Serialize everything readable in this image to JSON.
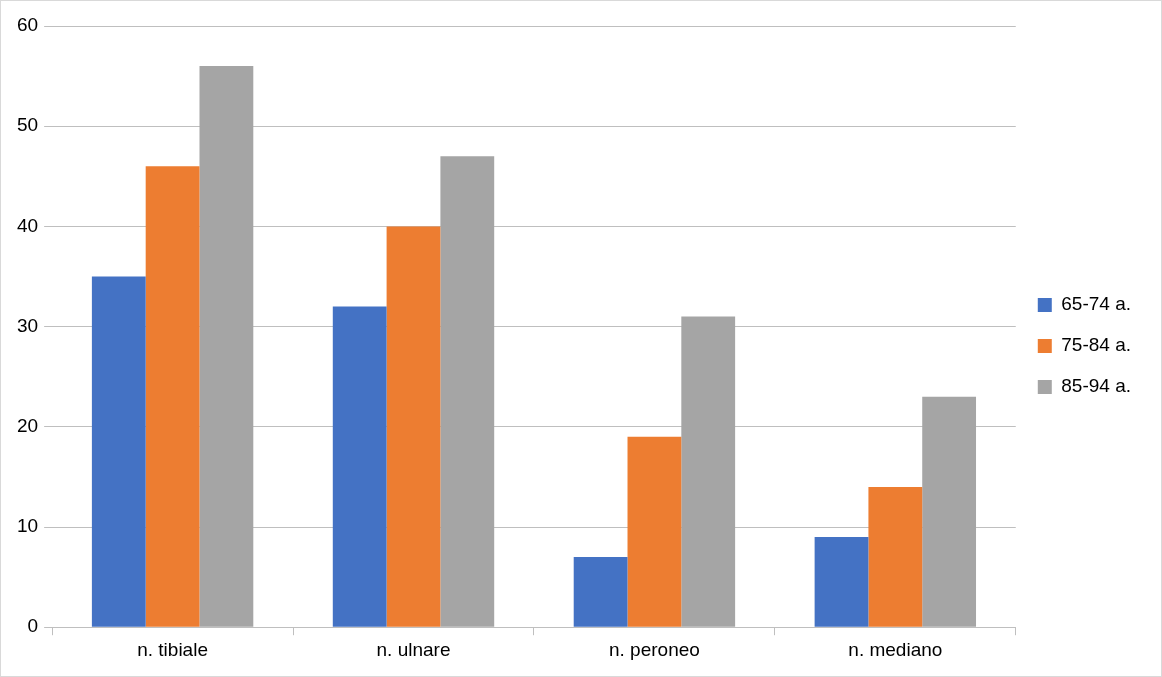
{
  "chart_data": {
    "type": "bar",
    "categories": [
      "n. tibiale",
      "n. ulnare",
      "n. peroneo",
      "n. mediano"
    ],
    "series": [
      {
        "name": "65-74 a.",
        "color": "#4472c4",
        "values": [
          35,
          32,
          7,
          9
        ]
      },
      {
        "name": "75-84 a.",
        "color": "#ed7d31",
        "values": [
          46,
          40,
          19,
          14
        ]
      },
      {
        "name": "85-94 a.",
        "color": "#a5a5a5",
        "values": [
          56,
          47,
          31,
          23
        ]
      }
    ],
    "ylim": [
      0,
      60
    ],
    "yticks": [
      0,
      10,
      20,
      30,
      40,
      50,
      60
    ],
    "grid": "y",
    "legend": "right"
  }
}
